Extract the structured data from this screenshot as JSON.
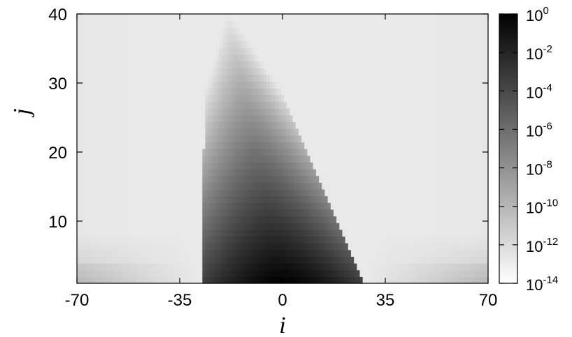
{
  "chart_data": {
    "type": "heatmap",
    "xlabel": "i",
    "ylabel": "j",
    "xlim": [
      -70,
      70
    ],
    "ylim": [
      1,
      40
    ],
    "x_ticks": [
      "-70",
      "-35",
      "0",
      "35",
      "70"
    ],
    "x_tick_values": [
      -70,
      -35,
      0,
      35,
      70
    ],
    "y_ticks": [
      "10",
      "20",
      "30",
      "40"
    ],
    "y_tick_values": [
      10,
      20,
      30,
      40
    ],
    "colorbar": {
      "scale": "log",
      "range": [
        1e-14,
        1
      ],
      "colormap": "white-to-black",
      "ticks": [
        {
          "base": "10",
          "exp": "0",
          "value": 1
        },
        {
          "base": "10",
          "exp": "-2",
          "value": 0.01
        },
        {
          "base": "10",
          "exp": "-4",
          "value": 0.0001
        },
        {
          "base": "10",
          "exp": "-6",
          "value": 1e-06
        },
        {
          "base": "10",
          "exp": "-8",
          "value": 1e-08
        },
        {
          "base": "10",
          "exp": "-10",
          "value": 1e-10
        },
        {
          "base": "10",
          "exp": "-12",
          "value": 1e-12
        },
        {
          "base": "10",
          "exp": "-14",
          "value": 1e-14
        }
      ]
    },
    "distribution": {
      "description_values": "peak value 1 at i=0, j=1; nonzero region bounded by i≈-28 on the left and a slanted right edge from i≈28 at j=1 to i≈-12 at j=38",
      "peak": {
        "i": 0,
        "j": 1,
        "value": 1
      },
      "background_value": 1e-13
    }
  }
}
